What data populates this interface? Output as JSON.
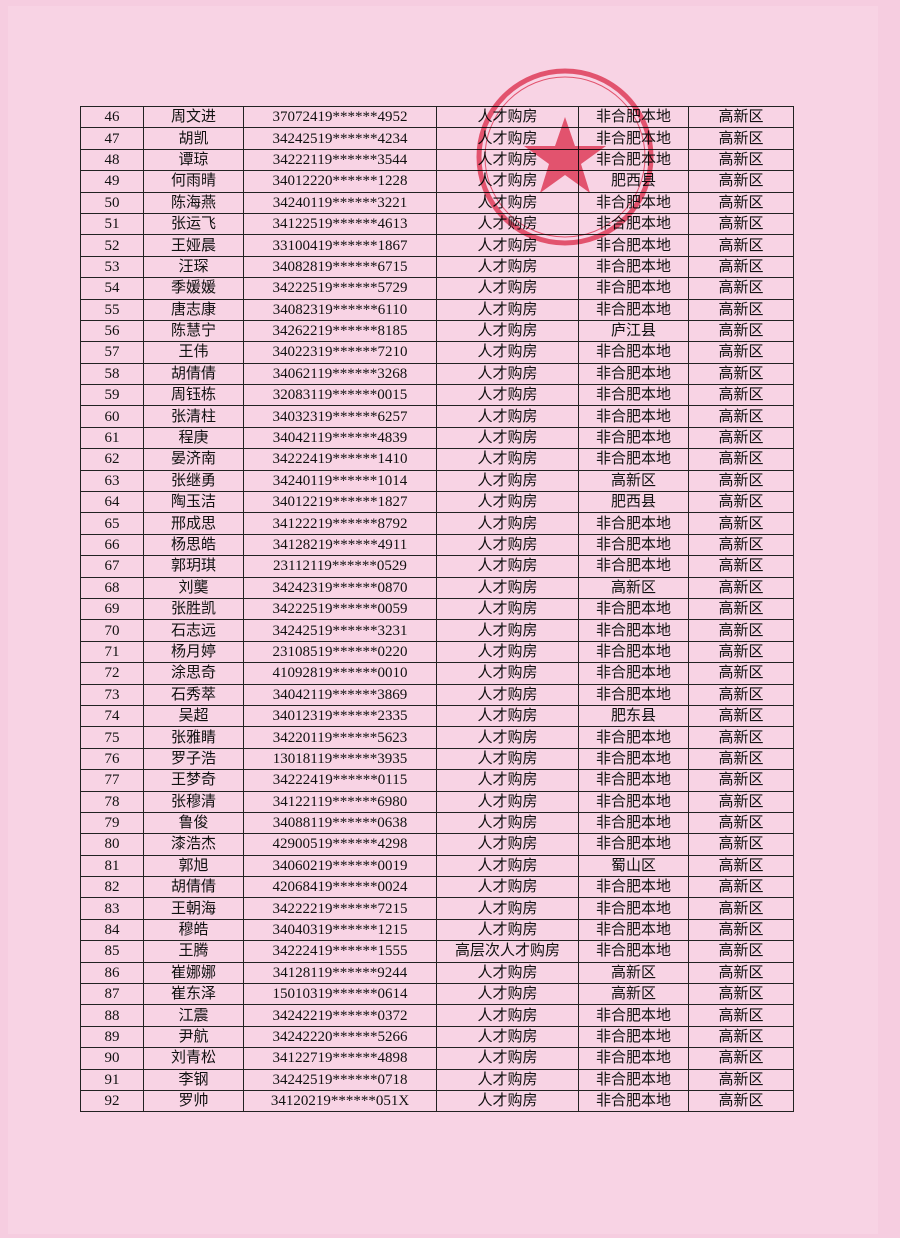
{
  "table": {
    "rows": [
      [
        46,
        "周文进",
        "37072419******4952",
        "人才购房",
        "非合肥本地",
        "高新区"
      ],
      [
        47,
        "胡凯",
        "34242519******4234",
        "人才购房",
        "非合肥本地",
        "高新区"
      ],
      [
        48,
        "谭琼",
        "34222119******3544",
        "人才购房",
        "非合肥本地",
        "高新区"
      ],
      [
        49,
        "何雨晴",
        "34012220******1228",
        "人才购房",
        "肥西县",
        "高新区"
      ],
      [
        50,
        "陈海燕",
        "34240119******3221",
        "人才购房",
        "非合肥本地",
        "高新区"
      ],
      [
        51,
        "张运飞",
        "34122519******4613",
        "人才购房",
        "非合肥本地",
        "高新区"
      ],
      [
        52,
        "王娅晨",
        "33100419******1867",
        "人才购房",
        "非合肥本地",
        "高新区"
      ],
      [
        53,
        "汪琛",
        "34082819******6715",
        "人才购房",
        "非合肥本地",
        "高新区"
      ],
      [
        54,
        "季媛媛",
        "34222519******5729",
        "人才购房",
        "非合肥本地",
        "高新区"
      ],
      [
        55,
        "唐志康",
        "34082319******6110",
        "人才购房",
        "非合肥本地",
        "高新区"
      ],
      [
        56,
        "陈慧宁",
        "34262219******8185",
        "人才购房",
        "庐江县",
        "高新区"
      ],
      [
        57,
        "王伟",
        "34022319******7210",
        "人才购房",
        "非合肥本地",
        "高新区"
      ],
      [
        58,
        "胡倩倩",
        "34062119******3268",
        "人才购房",
        "非合肥本地",
        "高新区"
      ],
      [
        59,
        "周钰栋",
        "32083119******0015",
        "人才购房",
        "非合肥本地",
        "高新区"
      ],
      [
        60,
        "张清柱",
        "34032319******6257",
        "人才购房",
        "非合肥本地",
        "高新区"
      ],
      [
        61,
        "程庚",
        "34042119******4839",
        "人才购房",
        "非合肥本地",
        "高新区"
      ],
      [
        62,
        "晏济南",
        "34222419******1410",
        "人才购房",
        "非合肥本地",
        "高新区"
      ],
      [
        63,
        "张继勇",
        "34240119******1014",
        "人才购房",
        "高新区",
        "高新区"
      ],
      [
        64,
        "陶玉洁",
        "34012219******1827",
        "人才购房",
        "肥西县",
        "高新区"
      ],
      [
        65,
        "邢成思",
        "34122219******8792",
        "人才购房",
        "非合肥本地",
        "高新区"
      ],
      [
        66,
        "杨思皓",
        "34128219******4911",
        "人才购房",
        "非合肥本地",
        "高新区"
      ],
      [
        67,
        "郭玥琪",
        "23112119******0529",
        "人才购房",
        "非合肥本地",
        "高新区"
      ],
      [
        68,
        "刘龑",
        "34242319******0870",
        "人才购房",
        "高新区",
        "高新区"
      ],
      [
        69,
        "张胜凯",
        "34222519******0059",
        "人才购房",
        "非合肥本地",
        "高新区"
      ],
      [
        70,
        "石志远",
        "34242519******3231",
        "人才购房",
        "非合肥本地",
        "高新区"
      ],
      [
        71,
        "杨月婷",
        "23108519******0220",
        "人才购房",
        "非合肥本地",
        "高新区"
      ],
      [
        72,
        "涂思奇",
        "41092819******0010",
        "人才购房",
        "非合肥本地",
        "高新区"
      ],
      [
        73,
        "石秀萃",
        "34042119******3869",
        "人才购房",
        "非合肥本地",
        "高新区"
      ],
      [
        74,
        "吴超",
        "34012319******2335",
        "人才购房",
        "肥东县",
        "高新区"
      ],
      [
        75,
        "张雅睛",
        "34220119******5623",
        "人才购房",
        "非合肥本地",
        "高新区"
      ],
      [
        76,
        "罗子浩",
        "13018119******3935",
        "人才购房",
        "非合肥本地",
        "高新区"
      ],
      [
        77,
        "王梦奇",
        "34222419******0115",
        "人才购房",
        "非合肥本地",
        "高新区"
      ],
      [
        78,
        "张穆清",
        "34122119******6980",
        "人才购房",
        "非合肥本地",
        "高新区"
      ],
      [
        79,
        "鲁俊",
        "34088119******0638",
        "人才购房",
        "非合肥本地",
        "高新区"
      ],
      [
        80,
        "漆浩杰",
        "42900519******4298",
        "人才购房",
        "非合肥本地",
        "高新区"
      ],
      [
        81,
        "郭旭",
        "34060219******0019",
        "人才购房",
        "蜀山区",
        "高新区"
      ],
      [
        82,
        "胡倩倩",
        "42068419******0024",
        "人才购房",
        "非合肥本地",
        "高新区"
      ],
      [
        83,
        "王朝海",
        "34222219******7215",
        "人才购房",
        "非合肥本地",
        "高新区"
      ],
      [
        84,
        "穆皓",
        "34040319******1215",
        "人才购房",
        "非合肥本地",
        "高新区"
      ],
      [
        85,
        "王腾",
        "34222419******1555",
        "高层次人才购房",
        "非合肥本地",
        "高新区"
      ],
      [
        86,
        "崔娜娜",
        "34128119******9244",
        "人才购房",
        "高新区",
        "高新区"
      ],
      [
        87,
        "崔东泽",
        "15010319******0614",
        "人才购房",
        "高新区",
        "高新区"
      ],
      [
        88,
        "江震",
        "34242219******0372",
        "人才购房",
        "非合肥本地",
        "高新区"
      ],
      [
        89,
        "尹航",
        "34242220******5266",
        "人才购房",
        "非合肥本地",
        "高新区"
      ],
      [
        90,
        "刘青松",
        "34122719******4898",
        "人才购房",
        "非合肥本地",
        "高新区"
      ],
      [
        91,
        "李钢",
        "34242519******0718",
        "人才购房",
        "非合肥本地",
        "高新区"
      ],
      [
        92,
        "罗帅",
        "34120219******051X",
        "人才购房",
        "非合肥本地",
        "高新区"
      ]
    ]
  }
}
